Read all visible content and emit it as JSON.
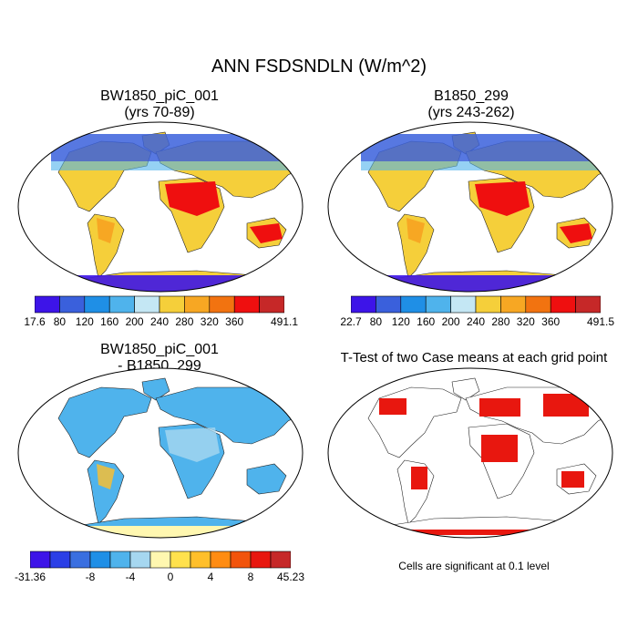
{
  "figure": {
    "title": "ANN FSDSNDLN (W/m^2)"
  },
  "panels": [
    {
      "id": "case1",
      "title_line1": "BW1850_piC_001",
      "title_line2": "(yrs 70-89)"
    },
    {
      "id": "case2",
      "title_line1": "B1850_299",
      "title_line2": "(yrs 243-262)"
    },
    {
      "id": "diff",
      "title_line1": "BW1850_piC_001",
      "title_line2": "- B1850_299"
    },
    {
      "id": "ttest",
      "title_line1": "T-Test of two Case means at each grid point",
      "title_line2": ""
    }
  ],
  "colorbars": {
    "case1": {
      "labels": [
        "17.6",
        "80",
        "120",
        "160",
        "200",
        "240",
        "280",
        "320",
        "360",
        "491.1"
      ],
      "colors": [
        "#3d14e8",
        "#3a60dc",
        "#1f8fe6",
        "#4fb3ec",
        "#c4e7f4",
        "#f5cf3a",
        "#f7a723",
        "#f27310",
        "#ef0f0f",
        "#c62828"
      ]
    },
    "case2": {
      "labels": [
        "22.7",
        "80",
        "120",
        "160",
        "200",
        "240",
        "280",
        "320",
        "360",
        "491.5"
      ],
      "colors": [
        "#3d14e8",
        "#3a60dc",
        "#1f8fe6",
        "#4fb3ec",
        "#c4e7f4",
        "#f5cf3a",
        "#f7a723",
        "#f27310",
        "#ef0f0f",
        "#c62828"
      ]
    },
    "diff": {
      "labels": [
        "-31.36",
        "-8",
        "-4",
        "0",
        "4",
        "8",
        "45.23"
      ],
      "colors": [
        "#3d14e8",
        "#2b3fe6",
        "#3a6fe0",
        "#1f8fe6",
        "#4fb3ec",
        "#a6d7f0",
        "#fff7b0",
        "#ffe14d",
        "#ffbf2a",
        "#ff8c12",
        "#f2540c",
        "#e8170f",
        "#c62828"
      ]
    }
  },
  "ttest_note": "Cells are significant at 0.1 level"
}
